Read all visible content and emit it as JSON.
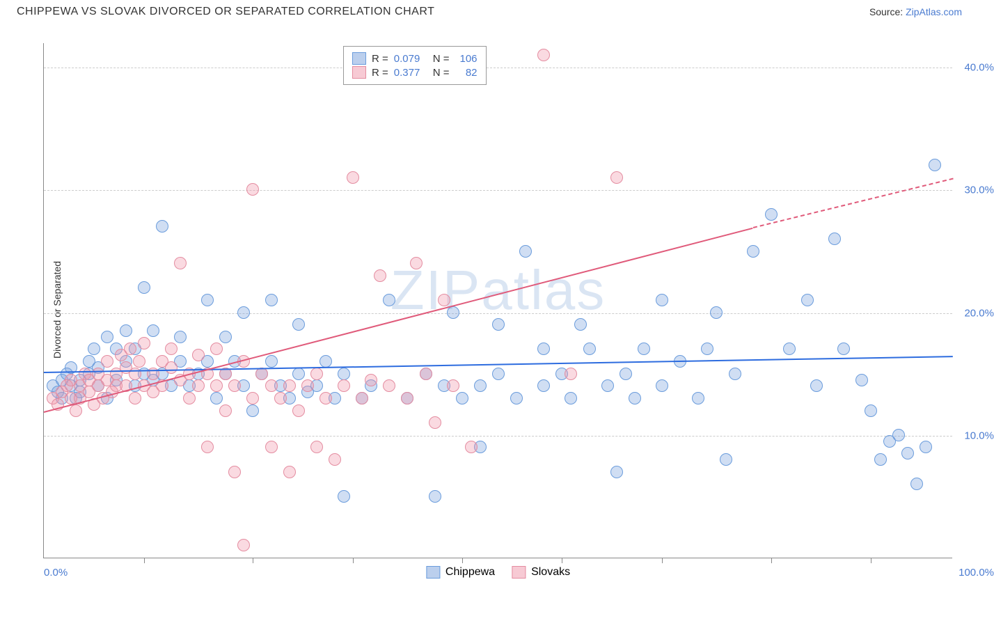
{
  "header": {
    "title": "CHIPPEWA VS SLOVAK DIVORCED OR SEPARATED CORRELATION CHART",
    "source_label": "Source: ",
    "source_link": "ZipAtlas.com"
  },
  "chart": {
    "type": "scatter",
    "ylabel": "Divorced or Separated",
    "xlim": [
      0,
      100
    ],
    "ylim": [
      0,
      42
    ],
    "xaxis_min_label": "0.0%",
    "xaxis_max_label": "100.0%",
    "yticks": [
      {
        "v": 10,
        "label": "10.0%"
      },
      {
        "v": 20,
        "label": "20.0%"
      },
      {
        "v": 30,
        "label": "30.0%"
      },
      {
        "v": 40,
        "label": "40.0%"
      }
    ],
    "xtick_positions": [
      11,
      23,
      34,
      46,
      57,
      68,
      80,
      91
    ],
    "grid_color": "#cccccc",
    "background_color": "#ffffff",
    "watermark": "ZIPatlas",
    "marker_radius": 9,
    "marker_stroke_width": 1.5,
    "series": [
      {
        "name": "Chippewa",
        "fill": "rgba(120,160,220,0.35)",
        "stroke": "#6a9cdc",
        "trend_color": "#2d6cdf",
        "R": "0.079",
        "N": "106",
        "trend": {
          "x1": 0,
          "y1": 15.2,
          "x2": 100,
          "y2": 16.5
        },
        "points": [
          [
            1,
            14
          ],
          [
            1.5,
            13.5
          ],
          [
            2,
            14.5
          ],
          [
            2,
            13
          ],
          [
            2.5,
            15
          ],
          [
            3,
            14
          ],
          [
            3,
            15.5
          ],
          [
            3.5,
            13
          ],
          [
            4,
            14.5
          ],
          [
            4,
            13.5
          ],
          [
            5,
            15
          ],
          [
            5,
            16
          ],
          [
            5.5,
            17
          ],
          [
            6,
            14
          ],
          [
            6,
            15.5
          ],
          [
            7,
            13
          ],
          [
            7,
            18
          ],
          [
            8,
            14.5
          ],
          [
            8,
            17
          ],
          [
            9,
            16
          ],
          [
            9,
            18.5
          ],
          [
            10,
            14
          ],
          [
            10,
            17
          ],
          [
            11,
            15
          ],
          [
            11,
            22
          ],
          [
            12,
            14.5
          ],
          [
            12,
            18.5
          ],
          [
            13,
            15
          ],
          [
            13,
            27
          ],
          [
            14,
            14
          ],
          [
            15,
            16
          ],
          [
            15,
            18
          ],
          [
            16,
            14
          ],
          [
            17,
            15
          ],
          [
            18,
            16
          ],
          [
            18,
            21
          ],
          [
            19,
            13
          ],
          [
            20,
            15
          ],
          [
            20,
            18
          ],
          [
            21,
            16
          ],
          [
            22,
            14
          ],
          [
            22,
            20
          ],
          [
            23,
            12
          ],
          [
            24,
            15
          ],
          [
            25,
            16
          ],
          [
            25,
            21
          ],
          [
            26,
            14
          ],
          [
            27,
            13
          ],
          [
            28,
            15
          ],
          [
            28,
            19
          ],
          [
            29,
            13.5
          ],
          [
            30,
            14
          ],
          [
            31,
            16
          ],
          [
            32,
            13
          ],
          [
            33,
            5
          ],
          [
            33,
            15
          ],
          [
            35,
            13
          ],
          [
            36,
            14
          ],
          [
            38,
            21
          ],
          [
            40,
            13
          ],
          [
            42,
            15
          ],
          [
            43,
            5
          ],
          [
            44,
            14
          ],
          [
            45,
            20
          ],
          [
            46,
            13
          ],
          [
            48,
            9
          ],
          [
            48,
            14
          ],
          [
            50,
            19
          ],
          [
            50,
            15
          ],
          [
            52,
            13
          ],
          [
            53,
            25
          ],
          [
            55,
            14
          ],
          [
            55,
            17
          ],
          [
            57,
            15
          ],
          [
            58,
            13
          ],
          [
            59,
            19
          ],
          [
            60,
            17
          ],
          [
            62,
            14
          ],
          [
            63,
            7
          ],
          [
            64,
            15
          ],
          [
            65,
            13
          ],
          [
            66,
            17
          ],
          [
            68,
            21
          ],
          [
            68,
            14
          ],
          [
            70,
            16
          ],
          [
            72,
            13
          ],
          [
            73,
            17
          ],
          [
            74,
            20
          ],
          [
            75,
            8
          ],
          [
            76,
            15
          ],
          [
            78,
            25
          ],
          [
            80,
            28
          ],
          [
            82,
            17
          ],
          [
            84,
            21
          ],
          [
            85,
            14
          ],
          [
            87,
            26
          ],
          [
            88,
            17
          ],
          [
            90,
            14.5
          ],
          [
            91,
            12
          ],
          [
            92,
            8
          ],
          [
            93,
            9.5
          ],
          [
            94,
            10
          ],
          [
            95,
            8.5
          ],
          [
            96,
            6
          ],
          [
            97,
            9
          ],
          [
            98,
            32
          ]
        ]
      },
      {
        "name": "Slovaks",
        "fill": "rgba(240,150,170,0.35)",
        "stroke": "#e48ca0",
        "trend_color": "#e05a7a",
        "R": "0.377",
        "N": "82",
        "trend": {
          "x1": 0,
          "y1": 12,
          "x2": 78,
          "y2": 27
        },
        "trend_dash": {
          "x1": 78,
          "y1": 27,
          "x2": 100,
          "y2": 31
        },
        "points": [
          [
            1,
            13
          ],
          [
            1.5,
            12.5
          ],
          [
            2,
            13.5
          ],
          [
            2.5,
            14
          ],
          [
            3,
            13
          ],
          [
            3,
            14.5
          ],
          [
            3.5,
            12
          ],
          [
            4,
            14
          ],
          [
            4,
            13
          ],
          [
            4.5,
            15
          ],
          [
            5,
            13.5
          ],
          [
            5,
            14.5
          ],
          [
            5.5,
            12.5
          ],
          [
            6,
            14
          ],
          [
            6,
            15
          ],
          [
            6.5,
            13
          ],
          [
            7,
            14.5
          ],
          [
            7,
            16
          ],
          [
            7.5,
            13.5
          ],
          [
            8,
            15
          ],
          [
            8,
            14
          ],
          [
            8.5,
            16.5
          ],
          [
            9,
            14
          ],
          [
            9,
            15.5
          ],
          [
            9.5,
            17
          ],
          [
            10,
            13
          ],
          [
            10,
            15
          ],
          [
            10.5,
            16
          ],
          [
            11,
            14
          ],
          [
            11,
            17.5
          ],
          [
            12,
            15
          ],
          [
            12,
            13.5
          ],
          [
            13,
            16
          ],
          [
            13,
            14
          ],
          [
            14,
            15.5
          ],
          [
            14,
            17
          ],
          [
            15,
            14.5
          ],
          [
            15,
            24
          ],
          [
            16,
            13
          ],
          [
            16,
            15
          ],
          [
            17,
            16.5
          ],
          [
            17,
            14
          ],
          [
            18,
            9
          ],
          [
            18,
            15
          ],
          [
            19,
            14
          ],
          [
            19,
            17
          ],
          [
            20,
            15
          ],
          [
            20,
            12
          ],
          [
            21,
            7
          ],
          [
            21,
            14
          ],
          [
            22,
            16
          ],
          [
            23,
            13
          ],
          [
            23,
            30
          ],
          [
            24,
            15
          ],
          [
            25,
            9
          ],
          [
            25,
            14
          ],
          [
            26,
            13
          ],
          [
            27,
            7
          ],
          [
            27,
            14
          ],
          [
            28,
            12
          ],
          [
            22,
            1
          ],
          [
            29,
            14
          ],
          [
            30,
            9
          ],
          [
            30,
            15
          ],
          [
            31,
            13
          ],
          [
            32,
            8
          ],
          [
            33,
            14
          ],
          [
            34,
            31
          ],
          [
            35,
            13
          ],
          [
            36,
            14.5
          ],
          [
            37,
            23
          ],
          [
            38,
            14
          ],
          [
            40,
            13
          ],
          [
            41,
            24
          ],
          [
            42,
            15
          ],
          [
            43,
            11
          ],
          [
            44,
            21
          ],
          [
            45,
            14
          ],
          [
            47,
            9
          ],
          [
            55,
            41
          ],
          [
            58,
            15
          ],
          [
            63,
            31
          ]
        ]
      }
    ],
    "legend_top": {
      "rows": [
        {
          "swatch_fill": "rgba(120,160,220,0.5)",
          "swatch_stroke": "#6a9cdc",
          "r_label": "R =",
          "r_val": "0.079",
          "n_label": "N =",
          "n_val": "106"
        },
        {
          "swatch_fill": "rgba(240,150,170,0.5)",
          "swatch_stroke": "#e48ca0",
          "r_label": "R =",
          "r_val": "0.377",
          "n_label": "N =",
          "n_val": "82"
        }
      ]
    },
    "legend_bottom": [
      {
        "swatch_fill": "rgba(120,160,220,0.5)",
        "swatch_stroke": "#6a9cdc",
        "label": "Chippewa"
      },
      {
        "swatch_fill": "rgba(240,150,170,0.5)",
        "swatch_stroke": "#e48ca0",
        "label": "Slovaks"
      }
    ]
  }
}
